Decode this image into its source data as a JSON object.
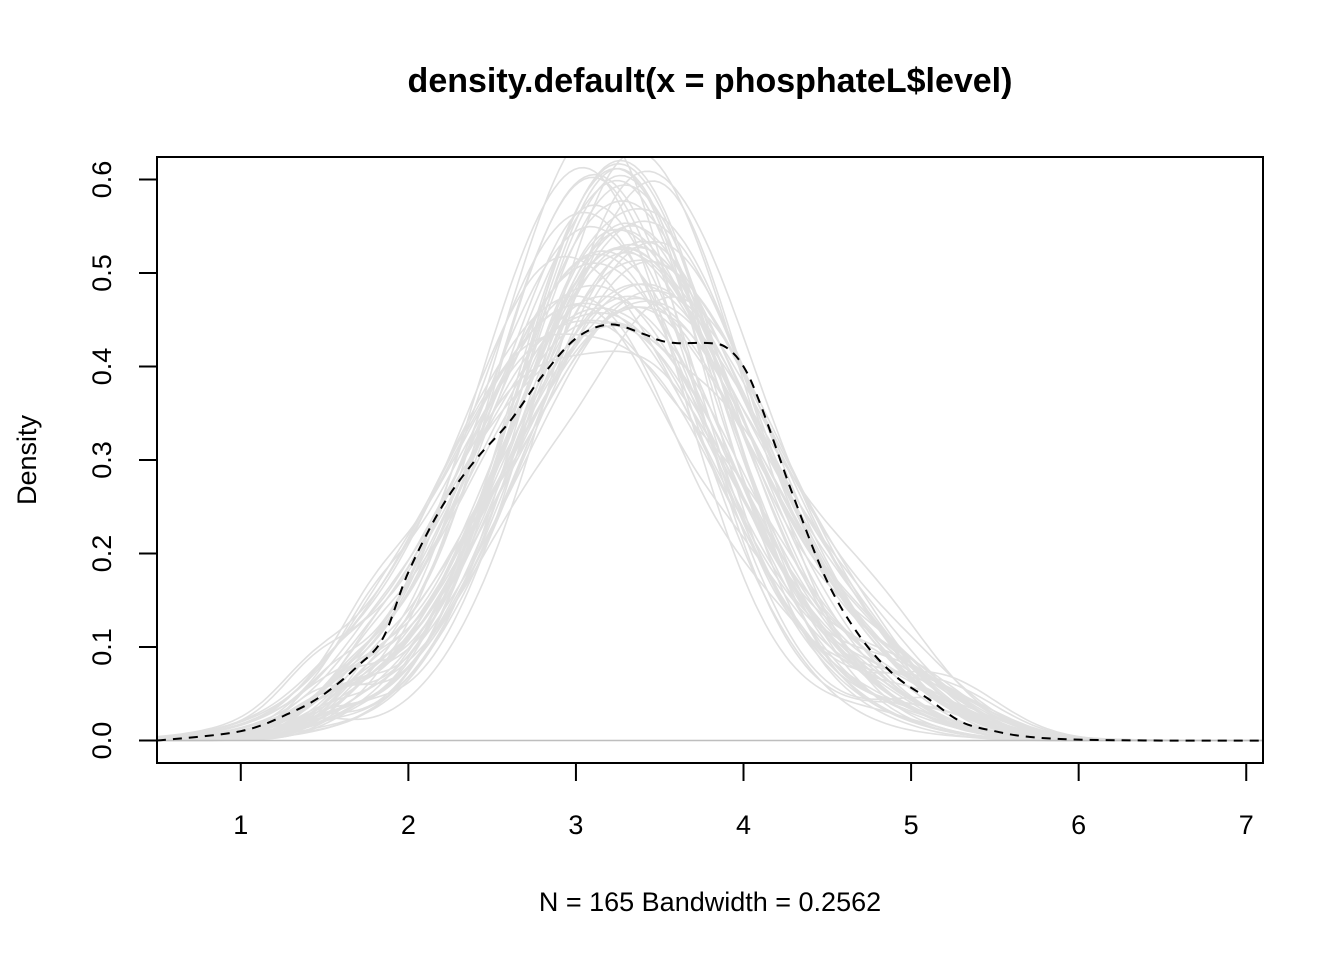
{
  "chart_data": {
    "type": "line",
    "title": "density.default(x = phosphateL$level)",
    "xlabel": "N = 165   Bandwidth = 0.2562",
    "ylabel": "Density",
    "xlim": [
      0.5,
      7.1
    ],
    "ylim": [
      -0.024,
      0.624
    ],
    "x_ticks": [
      1,
      2,
      3,
      4,
      5,
      6,
      7
    ],
    "y_ticks": [
      0.0,
      0.1,
      0.2,
      0.3,
      0.4,
      0.5,
      0.6
    ],
    "x_tick_labels": [
      "1",
      "2",
      "3",
      "4",
      "5",
      "6",
      "7"
    ],
    "y_tick_labels": [
      "0.0",
      "0.1",
      "0.2",
      "0.3",
      "0.4",
      "0.5",
      "0.6"
    ],
    "grid": false,
    "legend": "none",
    "bootstrap_curves": 60,
    "colors": {
      "main": "#000000",
      "bootstrap": "#e0e0e0",
      "baseline": "#bebebe"
    },
    "series": [
      {
        "line_style": "dashed",
        "color": "#000000",
        "x": [
          0.5,
          1.0,
          1.3,
          1.5,
          1.7,
          1.85,
          2.0,
          2.2,
          2.4,
          2.6,
          2.8,
          3.0,
          3.2,
          3.4,
          3.5,
          3.6,
          3.8,
          3.9,
          4.0,
          4.1,
          4.3,
          4.5,
          4.7,
          4.9,
          5.1,
          5.3,
          5.5,
          5.7,
          6.0,
          6.5,
          7.1
        ],
        "y": [
          0.0,
          0.01,
          0.03,
          0.05,
          0.08,
          0.11,
          0.18,
          0.25,
          0.3,
          0.34,
          0.39,
          0.43,
          0.445,
          0.435,
          0.428,
          0.425,
          0.425,
          0.42,
          0.4,
          0.36,
          0.26,
          0.17,
          0.11,
          0.07,
          0.045,
          0.02,
          0.01,
          0.004,
          0.001,
          0.0,
          0.0
        ]
      }
    ]
  }
}
